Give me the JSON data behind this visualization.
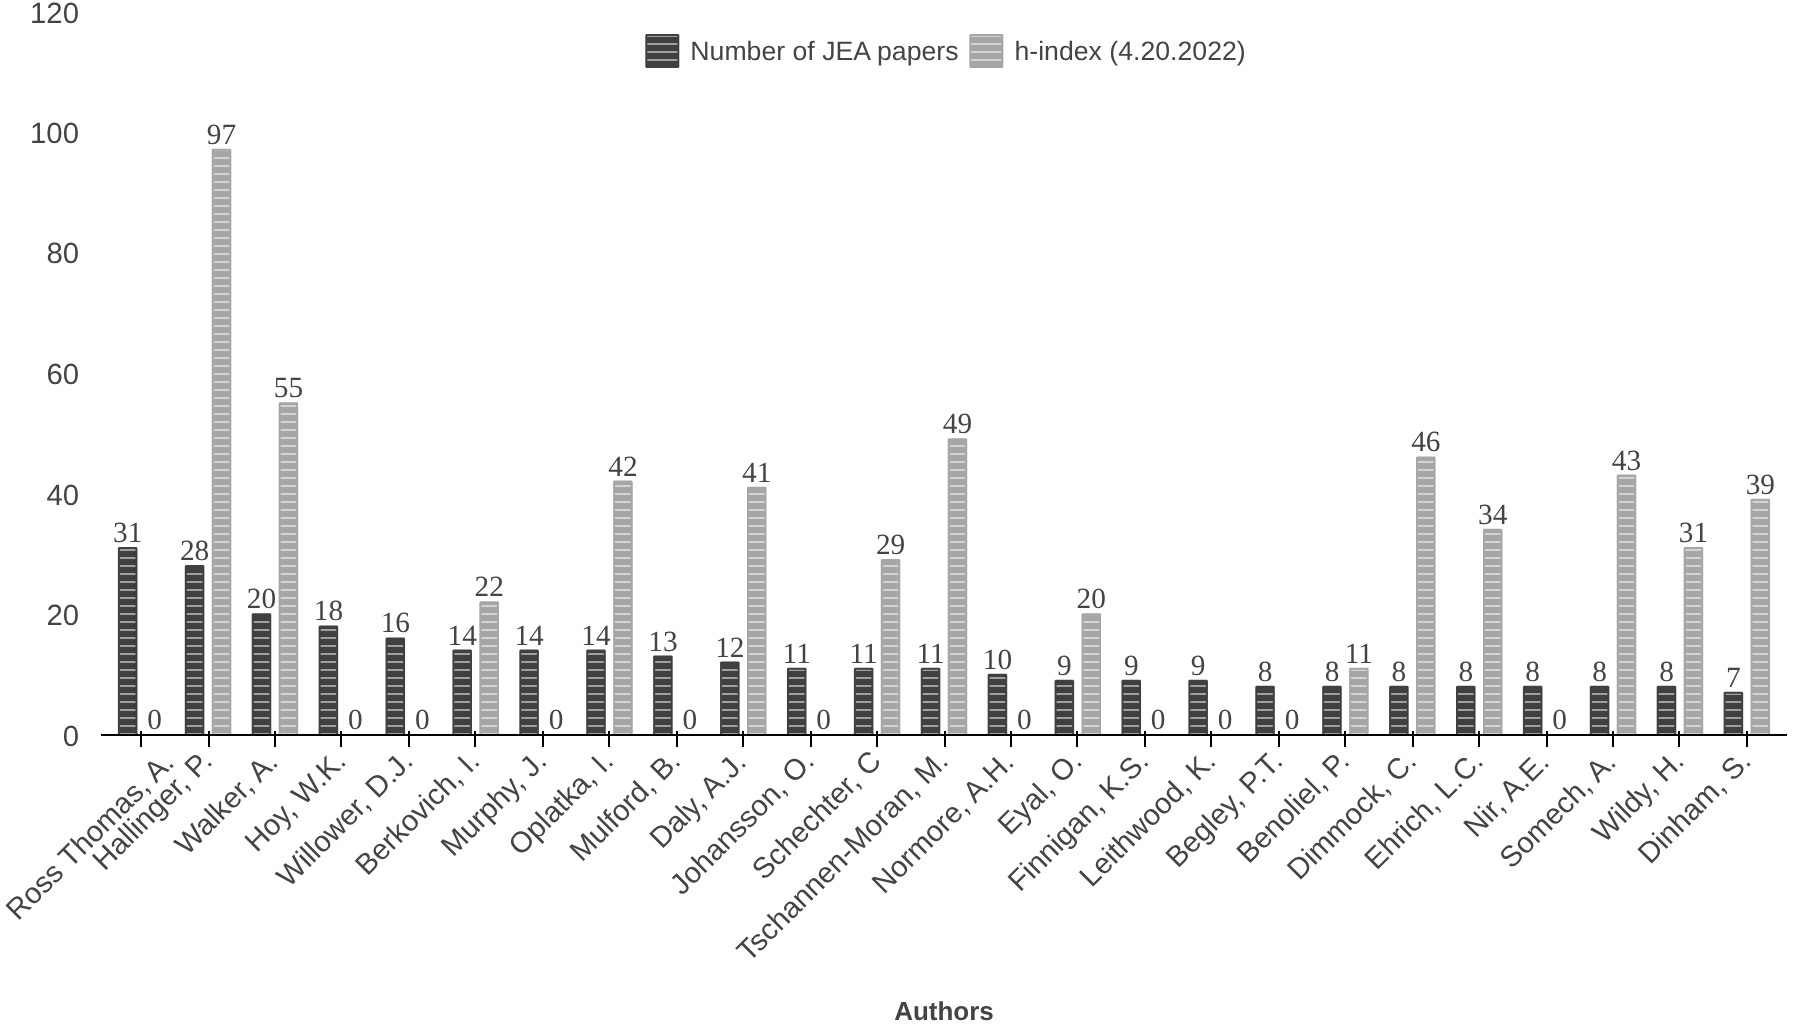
{
  "chart_data": {
    "type": "bar",
    "xlabel": "Authors",
    "categories": [
      "Ross Thomas, A.",
      "Hallinger, P.",
      "Walker, A.",
      "Hoy, W.K.",
      "Willower, D.J.",
      "Berkovich, I.",
      "Murphy, J.",
      "Oplatka, I.",
      "Mulford, B.",
      "Daly, A.J.",
      "Johansson, O.",
      "Schechter, C",
      "Tschannen-Moran, M.",
      "Normore, A.H.",
      "Eyal, O.",
      "Finnigan, K.S.",
      "Leithwood, K.",
      "Begley, P.T.",
      "Benoliel, P.",
      "Dimmock, C.",
      "Ehrich, L.C.",
      "Nir, A.E.",
      "Somech, A.",
      "Wildy, H.",
      "Dinham, S."
    ],
    "series": [
      {
        "name": "Number of JEA papers",
        "color": "#404040",
        "values": [
          31,
          28,
          20,
          18,
          16,
          14,
          14,
          14,
          13,
          12,
          11,
          11,
          11,
          10,
          9,
          9,
          9,
          8,
          8,
          8,
          8,
          8,
          8,
          8,
          7
        ]
      },
      {
        "name": "h-index (4.20.2022)",
        "color": "#a6a6a6",
        "values": [
          0,
          97,
          55,
          0,
          0,
          22,
          0,
          42,
          0,
          41,
          0,
          29,
          49,
          0,
          20,
          0,
          0,
          0,
          11,
          46,
          34,
          0,
          43,
          31,
          39
        ]
      }
    ],
    "ylim": [
      0,
      120
    ],
    "yticks": [
      0,
      20,
      40,
      60,
      80,
      100,
      120
    ],
    "grid": false,
    "legend": "top",
    "data_labels": true
  }
}
